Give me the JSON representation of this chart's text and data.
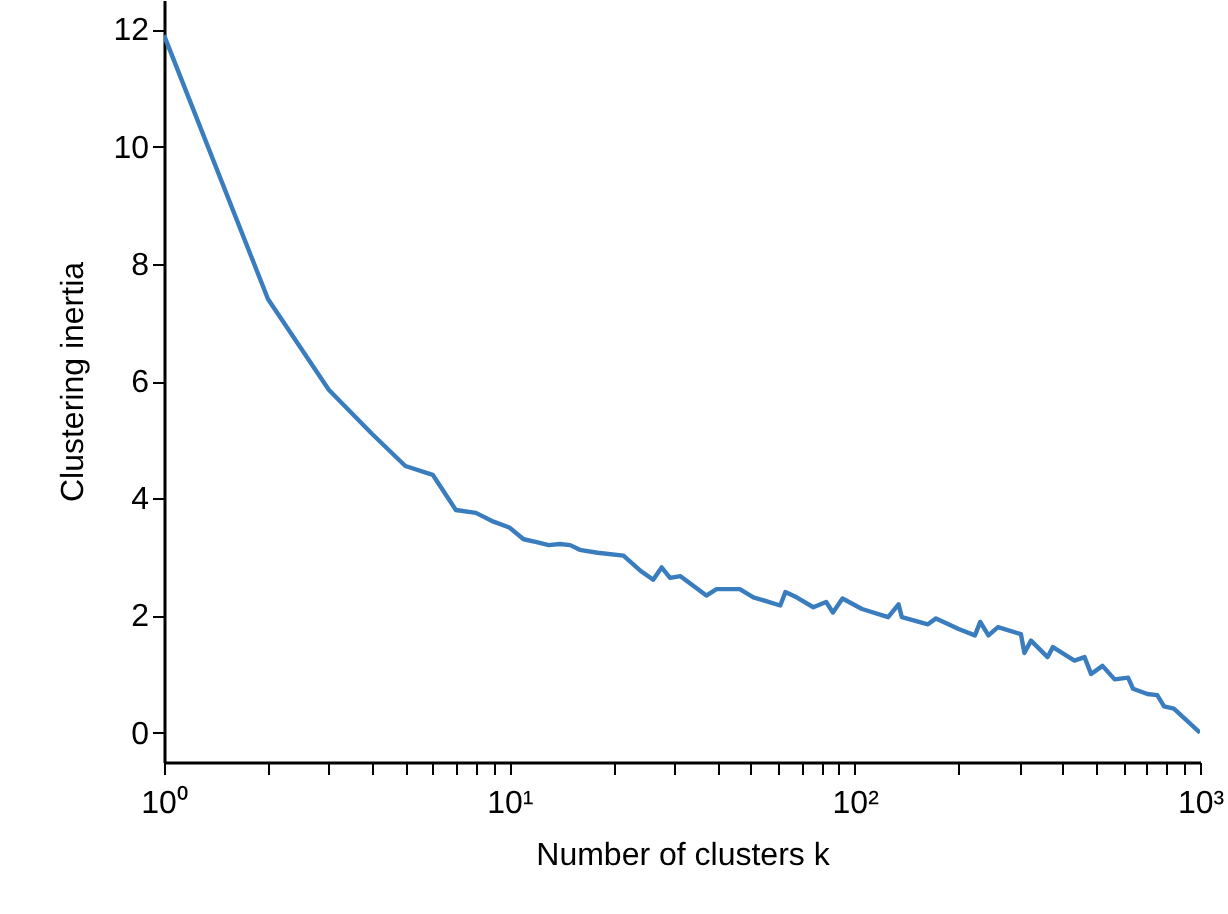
{
  "chart_data": {
    "type": "line",
    "xlabel": "Number of clusters k",
    "ylabel": "Clustering inertia",
    "log": "x",
    "grid": false,
    "marker": "none",
    "line_style": "solid",
    "xlim": [
      1,
      1000
    ],
    "ylim": [
      -0.5,
      12.5
    ],
    "xticks": [
      {
        "value": 1,
        "label": "10⁰"
      },
      {
        "value": 2,
        "label": null
      },
      {
        "value": 3,
        "label": null
      },
      {
        "value": 4,
        "label": null
      },
      {
        "value": 5,
        "label": null
      },
      {
        "value": 6,
        "label": null
      },
      {
        "value": 7,
        "label": null
      },
      {
        "value": 8,
        "label": null
      },
      {
        "value": 9,
        "label": null
      },
      {
        "value": 10,
        "label": "10¹"
      },
      {
        "value": 20,
        "label": null
      },
      {
        "value": 30,
        "label": null
      },
      {
        "value": 40,
        "label": null
      },
      {
        "value": 50,
        "label": null
      },
      {
        "value": 60,
        "label": null
      },
      {
        "value": 70,
        "label": null
      },
      {
        "value": 80,
        "label": null
      },
      {
        "value": 90,
        "label": null
      },
      {
        "value": 100,
        "label": "10²"
      },
      {
        "value": 200,
        "label": null
      },
      {
        "value": 300,
        "label": null
      },
      {
        "value": 400,
        "label": null
      },
      {
        "value": 500,
        "label": null
      },
      {
        "value": 600,
        "label": null
      },
      {
        "value": 700,
        "label": null
      },
      {
        "value": 800,
        "label": null
      },
      {
        "value": 900,
        "label": null
      },
      {
        "value": 1000,
        "label": "10³"
      }
    ],
    "yticks": [
      0,
      2,
      4,
      6,
      8,
      10,
      12
    ],
    "series": [
      {
        "color": "#3a7dbf",
        "x": [
          1,
          2,
          3,
          4,
          5,
          6,
          7,
          8,
          9,
          10,
          11,
          12,
          13,
          14,
          15,
          16,
          18,
          21.4,
          24,
          26.1,
          27.6,
          29.2,
          31.3,
          37.2,
          39.8,
          46.5,
          50.9,
          60.9,
          63,
          67.9,
          75.9,
          82.7,
          86.5,
          92.2,
          105,
          125,
          134,
          137,
          163,
          172,
          200,
          223,
          231,
          244,
          260,
          303,
          310,
          324,
          362,
          375,
          433,
          463,
          484,
          522,
          566,
          619,
          640,
          704,
          752,
          787,
          840,
          1000
        ],
        "values": [
          11.9,
          7.4,
          5.85,
          5.1,
          4.55,
          4.4,
          3.8,
          3.75,
          3.6,
          3.5,
          3.3,
          3.25,
          3.2,
          3.22,
          3.2,
          3.12,
          3.07,
          3.02,
          2.76,
          2.61,
          2.82,
          2.64,
          2.67,
          2.34,
          2.45,
          2.45,
          2.31,
          2.17,
          2.4,
          2.31,
          2.14,
          2.23,
          2.05,
          2.29,
          2.11,
          1.97,
          2.19,
          1.97,
          1.85,
          1.95,
          1.77,
          1.66,
          1.89,
          1.66,
          1.8,
          1.68,
          1.36,
          1.57,
          1.29,
          1.46,
          1.23,
          1.29,
          1.0,
          1.14,
          0.91,
          0.94,
          0.75,
          0.66,
          0.64,
          0.45,
          0.41,
          0.0
        ]
      }
    ]
  }
}
